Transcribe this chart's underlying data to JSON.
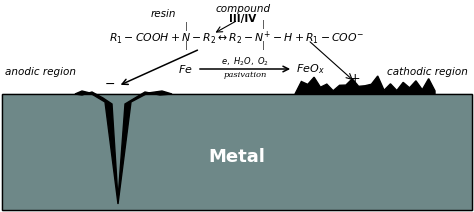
{
  "fig_width": 4.74,
  "fig_height": 2.12,
  "dpi": 100,
  "bg_color": "#ffffff",
  "metal_color": "#6e8888",
  "metal_label": "Metal",
  "metal_label_fontsize": 13,
  "metal_label_color": "white",
  "anodic_label": "anodic region",
  "cathodic_label": "cathodic region",
  "resin_label": "resin",
  "compound_line1": "compound",
  "compound_line2": "III/IV",
  "pasivation_label": "pasivation"
}
